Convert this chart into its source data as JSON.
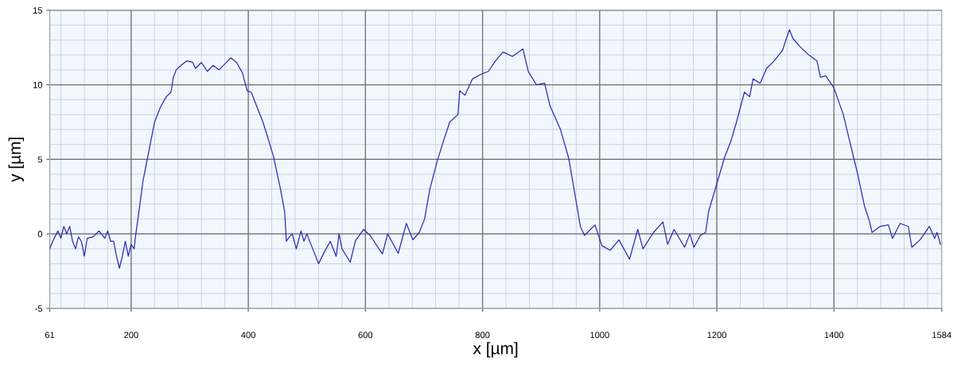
{
  "chart_data": {
    "type": "line",
    "xlabel": "x [µm]",
    "ylabel": "y [µm]",
    "xlim": [
      61,
      1584
    ],
    "ylim": [
      -5,
      15
    ],
    "xticks": [
      61,
      200,
      400,
      600,
      800,
      1000,
      1200,
      1400,
      1584
    ],
    "yticks": [
      -5,
      0,
      5,
      10,
      15
    ],
    "grid": true,
    "marker": "none",
    "line_style": "solid",
    "series": [
      {
        "color": "#2b2bb5",
        "x": [
          61,
          66,
          75,
          80,
          85,
          90,
          95,
          100,
          105,
          110,
          115,
          120,
          125,
          135,
          145,
          155,
          160,
          165,
          170,
          175,
          180,
          185,
          190,
          195,
          200,
          205,
          208,
          215,
          220,
          230,
          240,
          250,
          260,
          268,
          272,
          277,
          285,
          295,
          305,
          310,
          320,
          330,
          340,
          350,
          360,
          370,
          380,
          390,
          398,
          405,
          415,
          425,
          433,
          443,
          455,
          462,
          465,
          470,
          475,
          482,
          490,
          495,
          500,
          510,
          515,
          520,
          530,
          540,
          550,
          555,
          560,
          574,
          583,
          597,
          608,
          629,
          638,
          656,
          670,
          681,
          692,
          701,
          710,
          722,
          733,
          744,
          758,
          761,
          770,
          783,
          797,
          810,
          822,
          835,
          851,
          869,
          878,
          892,
          906,
          915,
          933,
          947,
          958,
          967,
          974,
          992,
          1004,
          1018,
          1033,
          1051,
          1065,
          1074,
          1092,
          1108,
          1116,
          1127,
          1145,
          1154,
          1161,
          1172,
          1181,
          1186,
          1192,
          1201,
          1213,
          1224,
          1235,
          1247,
          1256,
          1262,
          1274,
          1285,
          1298,
          1312,
          1324,
          1330,
          1341,
          1357,
          1371,
          1377,
          1386,
          1400,
          1416,
          1427,
          1440,
          1452,
          1461,
          1465,
          1479,
          1493,
          1500,
          1513,
          1527,
          1533,
          1547,
          1563,
          1572,
          1576,
          1582
        ],
        "values": [
          -1.0,
          -0.5,
          0.2,
          -0.3,
          0.5,
          0.0,
          0.5,
          -0.5,
          -1.0,
          -0.2,
          -0.5,
          -1.5,
          -0.3,
          -0.2,
          0.2,
          -0.3,
          0.2,
          -0.5,
          -0.5,
          -1.5,
          -2.3,
          -1.5,
          -0.5,
          -1.5,
          -0.7,
          -1.0,
          0.0,
          2.0,
          3.5,
          5.5,
          7.5,
          8.5,
          9.2,
          9.5,
          10.5,
          11.0,
          11.3,
          11.6,
          11.5,
          11.1,
          11.5,
          10.9,
          11.3,
          11.0,
          11.4,
          11.8,
          11.5,
          10.8,
          9.6,
          9.5,
          8.5,
          7.5,
          6.5,
          5.2,
          3.0,
          1.5,
          -0.5,
          -0.2,
          0.0,
          -1.0,
          0.2,
          -0.5,
          0.0,
          -1.0,
          -1.5,
          -2.0,
          -1.2,
          -0.5,
          -1.5,
          0.0,
          -1.0,
          -1.9,
          -0.45,
          0.3,
          -0.1,
          -1.35,
          0.0,
          -1.3,
          0.7,
          -0.4,
          0.1,
          1.0,
          3.0,
          4.8,
          6.2,
          7.5,
          8.0,
          9.6,
          9.3,
          10.4,
          10.7,
          10.9,
          11.6,
          12.2,
          11.9,
          12.4,
          10.9,
          10.0,
          10.1,
          8.6,
          7.0,
          5.1,
          2.6,
          0.5,
          -0.1,
          0.6,
          -0.8,
          -1.1,
          -0.4,
          -1.7,
          0.3,
          -1.0,
          0.1,
          0.8,
          -0.7,
          0.3,
          -0.9,
          0.0,
          -0.9,
          -0.1,
          0.1,
          1.5,
          2.3,
          3.5,
          5.1,
          6.2,
          7.7,
          9.5,
          9.2,
          10.4,
          10.1,
          11.1,
          11.6,
          12.3,
          13.7,
          13.1,
          12.6,
          12.0,
          11.6,
          10.5,
          10.6,
          9.8,
          8.0,
          6.2,
          4.1,
          1.9,
          0.8,
          0.1,
          0.5,
          0.6,
          -0.3,
          0.7,
          0.5,
          -0.9,
          -0.4,
          0.5,
          -0.3,
          0.1,
          -0.7
        ]
      }
    ]
  }
}
